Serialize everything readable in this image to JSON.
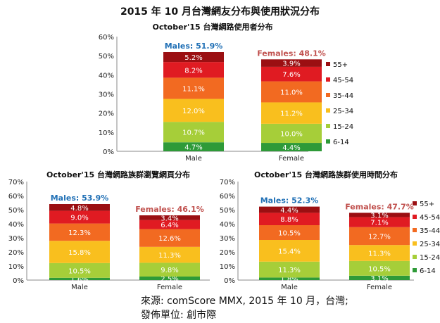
{
  "title": "2015 年 10 月台灣網友分布與使用狀況分布",
  "source_line1": "來源: comScore MMX, 2015 年 10 月，台灣;",
  "source_line2": "發佈單位: 創市際",
  "legend": [
    {
      "label": "55+",
      "color": "#9b0f12"
    },
    {
      "label": "45-54",
      "color": "#e01b22"
    },
    {
      "label": "35-44",
      "color": "#f26a21"
    },
    {
      "label": "25-34",
      "color": "#f9bf1e"
    },
    {
      "label": "15-24",
      "color": "#a6ce39"
    },
    {
      "label": "6-14",
      "color": "#2e9a38"
    }
  ],
  "colors": {
    "males_text": "#1f6fb5",
    "females_text": "#c0504d"
  },
  "chart_data": [
    {
      "type": "bar",
      "stacked": true,
      "title": "October'15 台灣網路使用者分布",
      "categories": [
        "Male",
        "Female"
      ],
      "ylim": [
        0,
        60
      ],
      "yticks": [
        "0%",
        "10%",
        "20%",
        "30%",
        "40%",
        "50%",
        "60%"
      ],
      "gender_labels": [
        "Males: 51.9%",
        "Females: 48.1%"
      ],
      "legend_position": "right",
      "series": [
        {
          "name": "6-14",
          "values": [
            4.7,
            4.4
          ],
          "labels": [
            "4.7%",
            "4.4%"
          ]
        },
        {
          "name": "15-24",
          "values": [
            10.7,
            10.0
          ],
          "labels": [
            "10.7%",
            "10.0%"
          ]
        },
        {
          "name": "25-34",
          "values": [
            12.0,
            11.2
          ],
          "labels": [
            "12.0%",
            "11.2%"
          ]
        },
        {
          "name": "35-44",
          "values": [
            11.1,
            11.0
          ],
          "labels": [
            "11.1%",
            "11.0%"
          ]
        },
        {
          "name": "45-54",
          "values": [
            8.2,
            7.6
          ],
          "labels": [
            "8.2%",
            "7.6%"
          ]
        },
        {
          "name": "55+",
          "values": [
            5.2,
            3.9
          ],
          "labels": [
            "5.2%",
            "3.9%"
          ]
        }
      ]
    },
    {
      "type": "bar",
      "stacked": true,
      "title": "October'15 台灣網路族群瀏覽網頁分布",
      "categories": [
        "Male",
        "Female"
      ],
      "ylim": [
        0,
        70
      ],
      "yticks": [
        "0%",
        "10%",
        "20%",
        "30%",
        "40%",
        "50%",
        "60%",
        "70%"
      ],
      "gender_labels": [
        "Males: 53.9%",
        "Females: 46.1%"
      ],
      "legend_position": "none",
      "series": [
        {
          "name": "6-14",
          "values": [
            1.6,
            2.5
          ],
          "labels": [
            "1.6%",
            "2.5%"
          ]
        },
        {
          "name": "15-24",
          "values": [
            10.5,
            9.8
          ],
          "labels": [
            "10.5%",
            "9.8%"
          ]
        },
        {
          "name": "25-34",
          "values": [
            15.8,
            11.3
          ],
          "labels": [
            "15.8%",
            "11.3%"
          ]
        },
        {
          "name": "35-44",
          "values": [
            12.3,
            12.6
          ],
          "labels": [
            "12.3%",
            "12.6%"
          ]
        },
        {
          "name": "45-54",
          "values": [
            9.0,
            6.4
          ],
          "labels": [
            "9.0%",
            "6.4%"
          ]
        },
        {
          "name": "55+",
          "values": [
            4.8,
            3.4
          ],
          "labels": [
            "4.8%",
            "3.4%"
          ]
        }
      ]
    },
    {
      "type": "bar",
      "stacked": true,
      "title": "October'15 台灣網路族群使用時間分布",
      "categories": [
        "Male",
        "Female"
      ],
      "ylim": [
        0,
        70
      ],
      "yticks": [
        "0%",
        "10%",
        "20%",
        "30%",
        "40%",
        "50%",
        "60%",
        "70%"
      ],
      "gender_labels": [
        "Males: 52.3%",
        "Females: 47.7%"
      ],
      "legend_position": "right",
      "series": [
        {
          "name": "6-14",
          "values": [
            1.8,
            3.1
          ],
          "labels": [
            "1.8%",
            "3.1%"
          ]
        },
        {
          "name": "15-24",
          "values": [
            11.3,
            10.5
          ],
          "labels": [
            "11.3%",
            "10.5%"
          ]
        },
        {
          "name": "25-34",
          "values": [
            15.4,
            11.3
          ],
          "labels": [
            "15.4%",
            "11.3%"
          ]
        },
        {
          "name": "35-44",
          "values": [
            10.5,
            12.7
          ],
          "labels": [
            "10.5%",
            "12.7%"
          ]
        },
        {
          "name": "45-54",
          "values": [
            8.8,
            7.1
          ],
          "labels": [
            "8.8%",
            "7.1%"
          ]
        },
        {
          "name": "55+",
          "values": [
            4.4,
            3.1
          ],
          "labels": [
            "4.4%",
            "3.1%"
          ]
        }
      ]
    }
  ]
}
